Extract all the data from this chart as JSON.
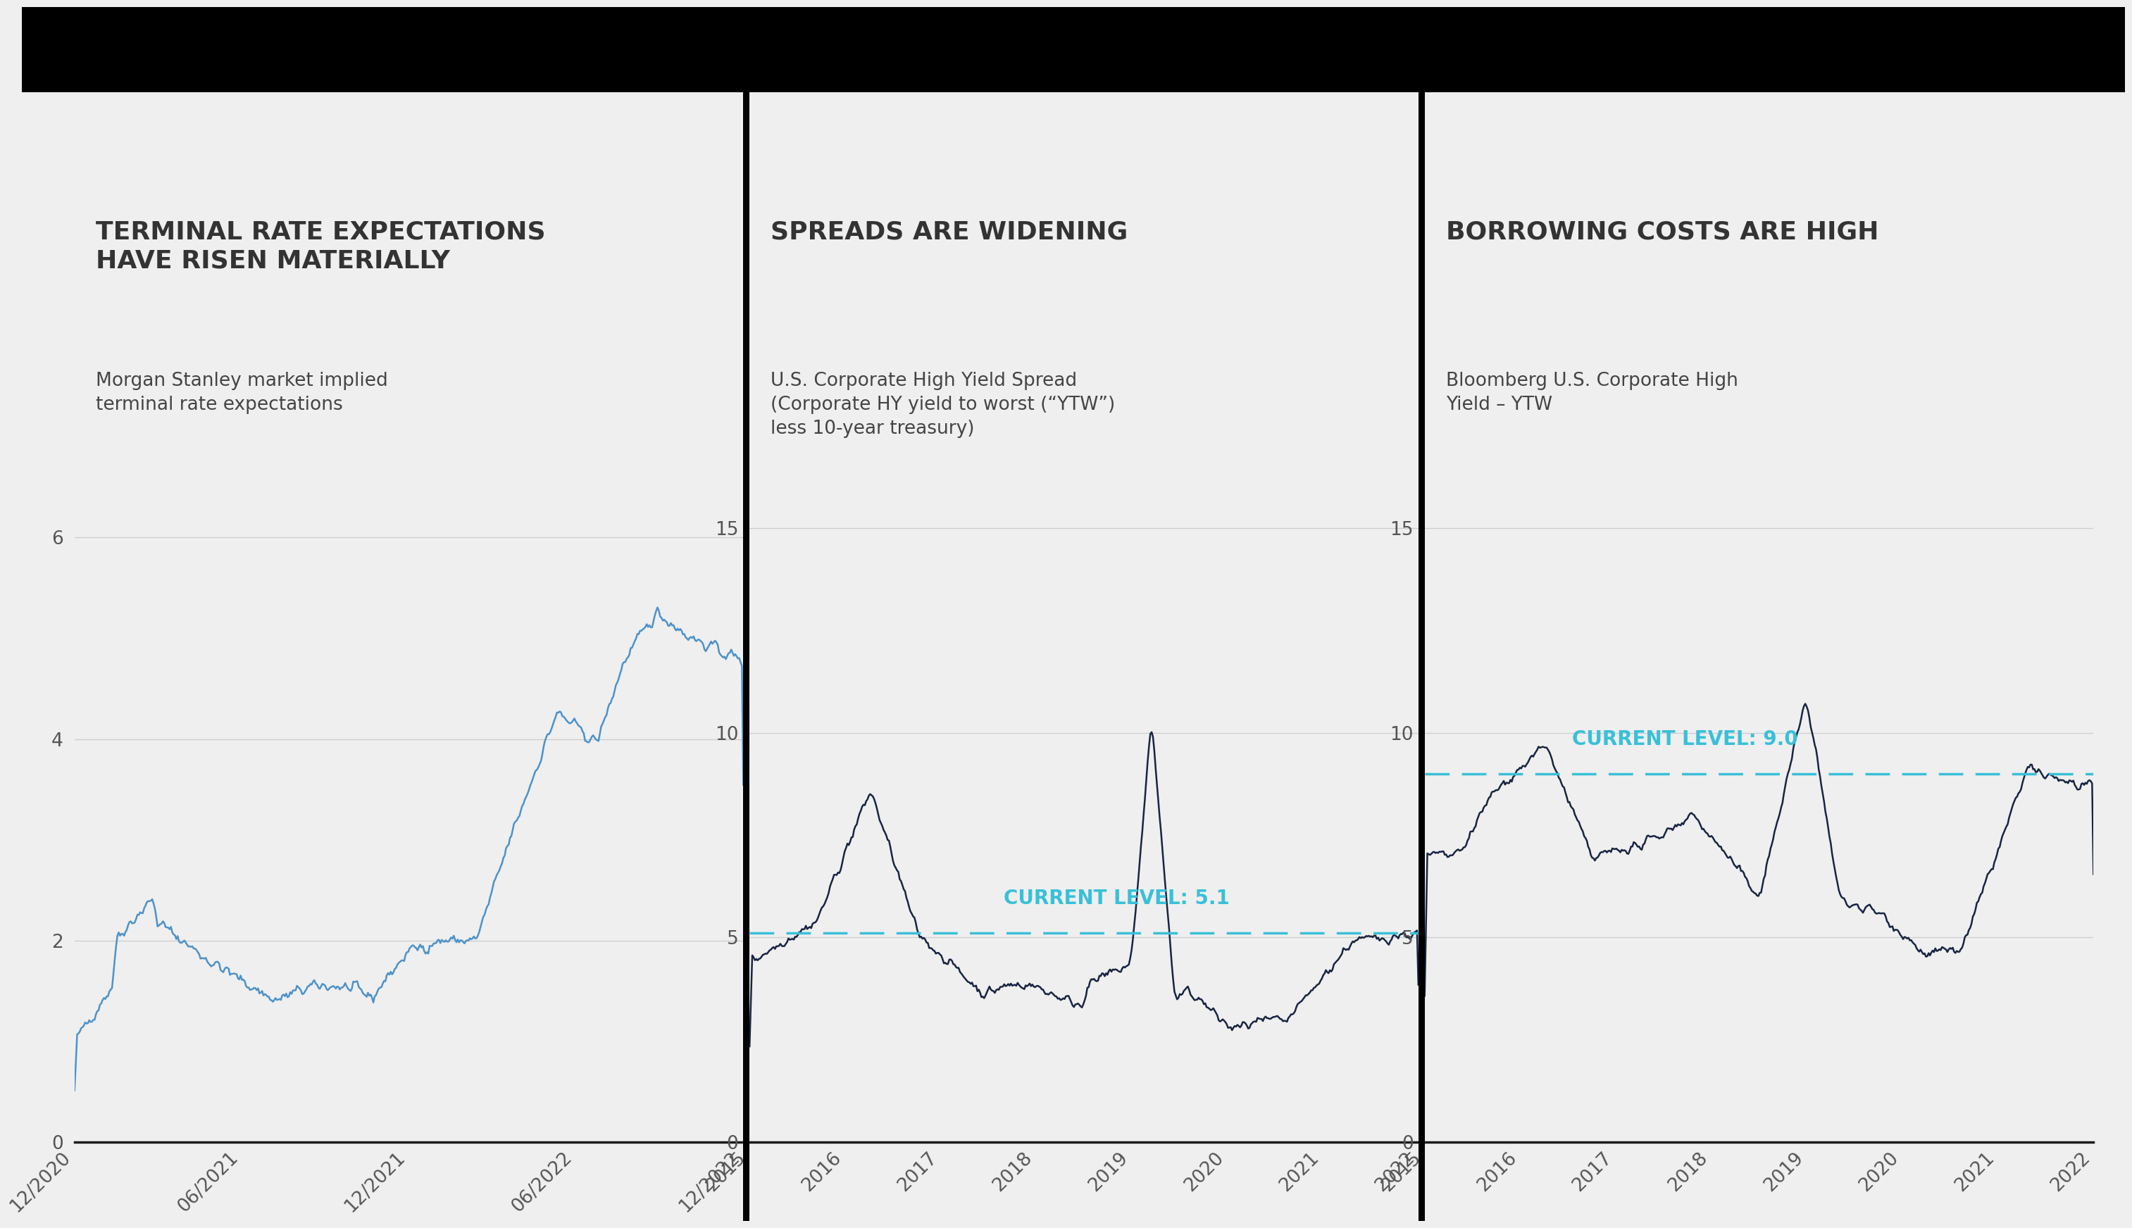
{
  "bg_color": "#efefef",
  "panel_bg": "#efefef",
  "top_bar_color": "#000000",
  "divider_color": "#000000",
  "title_color": "#333333",
  "subtitle_color": "#444444",
  "axis_label_color": "#555555",
  "line_color_1": "#4e92c8",
  "line_color_23": "#172542",
  "current_line_color": "#39c0d8",
  "grid_color": "#cccccc",
  "bottom_line_color": "#1a1a1a",
  "chart1": {
    "title": "TERMINAL RATE EXPECTATIONS\nHAVE RISEN MATERIALLY",
    "subtitle": "Morgan Stanley market implied\nterminal rate expectations",
    "ylim": [
      0,
      6.5
    ],
    "yticks": [
      0,
      2,
      4,
      6
    ],
    "xlabel_ticks": [
      "12/2020",
      "06/2021",
      "12/2021",
      "06/2022",
      "12/2022"
    ],
    "title_fontsize": 26,
    "subtitle_fontsize": 19,
    "tick_fontsize": 19
  },
  "chart2": {
    "title": "SPREADS ARE WIDENING",
    "subtitle": "U.S. Corporate High Yield Spread\n(Corporate HY yield to worst (“YTW”)\nless 10-year treasury)",
    "ylim": [
      0,
      16
    ],
    "yticks": [
      0,
      5,
      10,
      15
    ],
    "current_level": 5.1,
    "current_label": "CURRENT LEVEL: 5.1",
    "xlabel_ticks": [
      "2015",
      "2016",
      "2017",
      "2018",
      "2019",
      "2020",
      "2021",
      "2022"
    ],
    "title_fontsize": 26,
    "subtitle_fontsize": 19,
    "tick_fontsize": 19
  },
  "chart3": {
    "title": "BORROWING COSTS ARE HIGH",
    "subtitle": "Bloomberg U.S. Corporate High\nYield – YTW",
    "ylim": [
      0,
      16
    ],
    "yticks": [
      0,
      5,
      10,
      15
    ],
    "current_level": 9.0,
    "current_label": "CURRENT LEVEL: 9.0",
    "xlabel_ticks": [
      "2015",
      "2016",
      "2017",
      "2018",
      "2019",
      "2020",
      "2021",
      "2022"
    ],
    "title_fontsize": 26,
    "subtitle_fontsize": 19,
    "tick_fontsize": 19
  }
}
